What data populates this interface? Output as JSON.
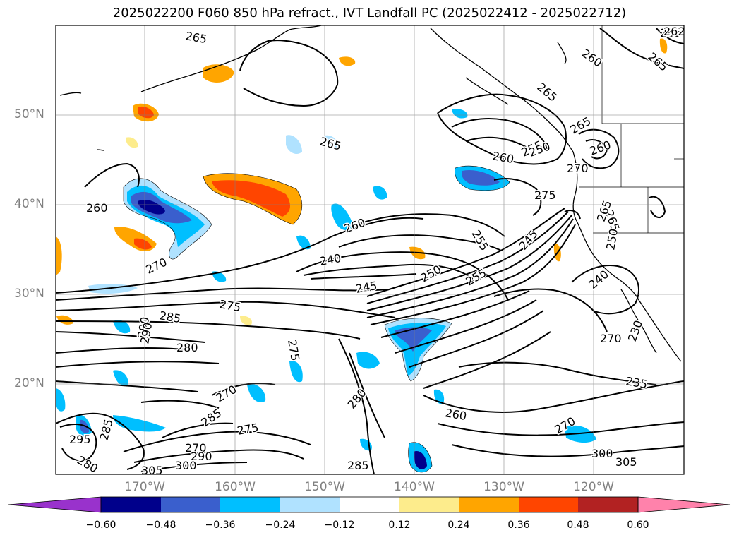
{
  "title": "2025022200 F060 850 hPa refract., IVT Landfall PC (2025022412 - 2025022712)",
  "axes": {
    "lat_labels": [
      "50°N",
      "40°N",
      "30°N",
      "20°N"
    ],
    "lon_labels": [
      "170°W",
      "160°W",
      "150°W",
      "140°W",
      "130°W",
      "120°W"
    ]
  },
  "contour_labels": [
    "265",
    "265",
    "260",
    "265",
    "265",
    "265",
    "260",
    "255",
    "250",
    "260",
    "270",
    "275",
    "260",
    "265",
    "270",
    "275",
    "285",
    "290",
    "280",
    "275",
    "240",
    "245",
    "260",
    "255",
    "245",
    "250",
    "255",
    "270",
    "285",
    "280",
    "270",
    "285",
    "275",
    "270",
    "290",
    "305",
    "300",
    "280",
    "285",
    "260",
    "235",
    "230",
    "240",
    "250",
    "265",
    "270",
    "295",
    "290",
    "300",
    "305",
    "262",
    "265"
  ],
  "colorbar": {
    "ticks": [
      "−0.60",
      "−0.48",
      "−0.36",
      "−0.24",
      "−0.12",
      "0.12",
      "0.24",
      "0.36",
      "0.48",
      "0.60"
    ],
    "colors": [
      "#9932cc",
      "#00008b",
      "#3a5fcd",
      "#00bfff",
      "#b0e2ff",
      "#ffffff",
      "#fdec8c",
      "#ffa500",
      "#ff4500",
      "#b22222",
      "#ff82ab"
    ]
  },
  "fill_colors": {
    "neg_weak": "#b0e2ff",
    "neg_mid": "#00bfff",
    "neg_strong": "#3a5fcd",
    "neg_max": "#00008b",
    "pos_weak": "#fdec8c",
    "pos_mid": "#ffa500",
    "pos_strong": "#ff4500"
  }
}
